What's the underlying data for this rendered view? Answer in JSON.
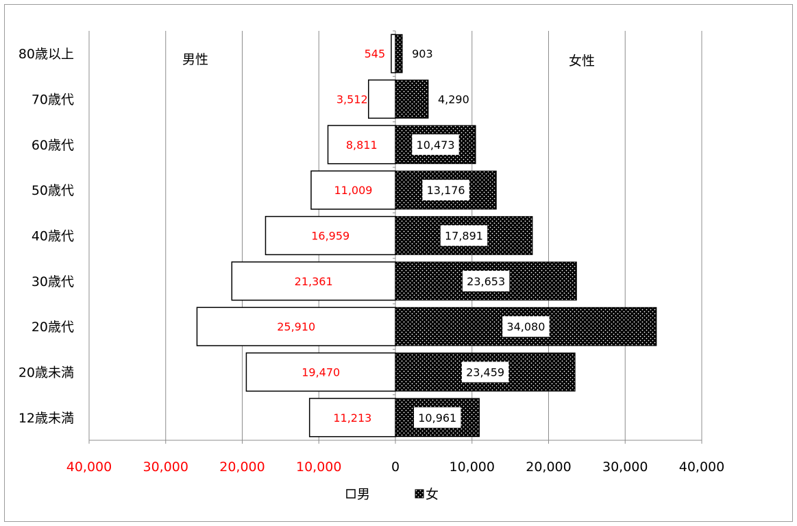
{
  "chart_data": {
    "type": "bar",
    "orientation": "horizontal",
    "categories": [
      "80歳以上",
      "70歳代",
      "60歳代",
      "50歳代",
      "40歳代",
      "30歳代",
      "20歳代",
      "20歳未満",
      "12歳未満"
    ],
    "series": [
      {
        "name": "男",
        "values": [
          545,
          3512,
          8811,
          11009,
          16959,
          21361,
          25910,
          19470,
          11213
        ],
        "color": "#ffffff",
        "label_color": "#ff0000"
      },
      {
        "name": "女",
        "values": [
          903,
          4290,
          10473,
          13176,
          17891,
          23653,
          34080,
          23459,
          10961
        ],
        "color": "#000000",
        "label_color": "#000000"
      }
    ],
    "male_labels": [
      "545",
      "3,512",
      "8,811",
      "11,009",
      "16,959",
      "21,361",
      "25,910",
      "19,470",
      "11,213"
    ],
    "female_labels": [
      "903",
      "4,290",
      "10,473",
      "13,176",
      "17,891",
      "23,653",
      "34,080",
      "23,459",
      "10,961"
    ],
    "xlim": [
      -40000,
      40000
    ],
    "x_ticks": [
      -40000,
      -30000,
      -20000,
      -10000,
      0,
      10000,
      20000,
      30000,
      40000
    ],
    "x_tick_labels": [
      "40,000",
      "30,000",
      "20,000",
      "10,000",
      "0",
      "10,000",
      "20,000",
      "30,000",
      "40,000"
    ],
    "negative_tick_color": "#ff0000",
    "positive_tick_color": "#000000",
    "annotations": {
      "left": "男性",
      "right": "女性"
    },
    "legend": {
      "position": "bottom",
      "items": [
        "男",
        "女"
      ]
    },
    "grid": true
  }
}
